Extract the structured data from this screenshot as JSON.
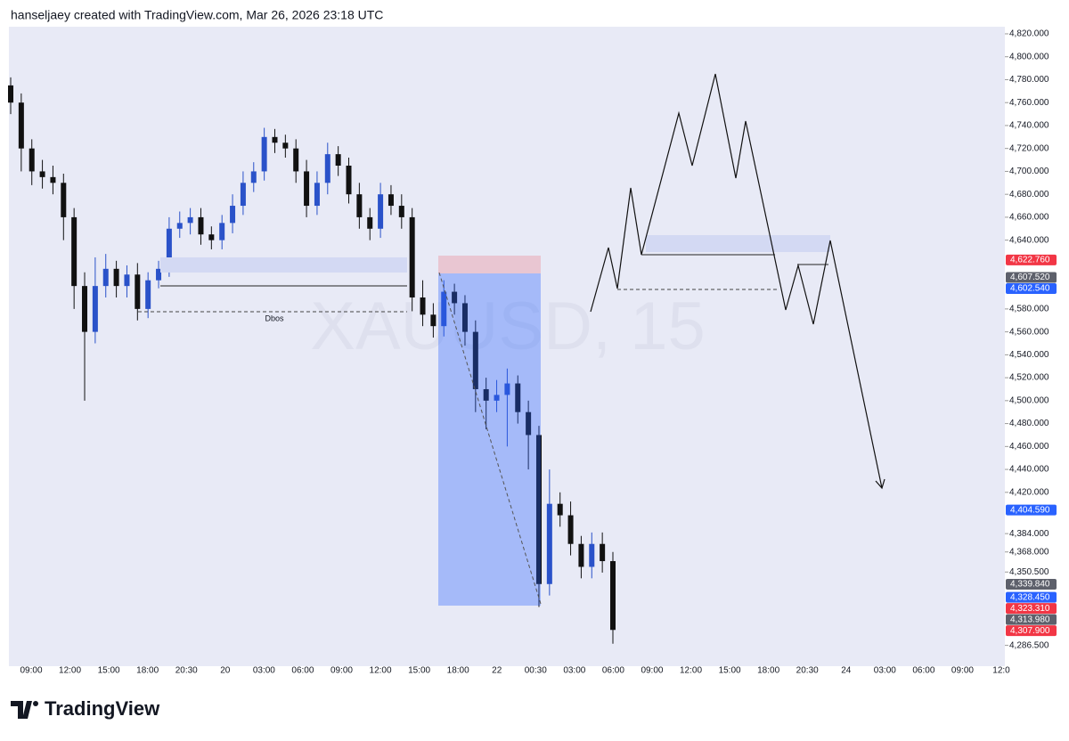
{
  "header": "hanseljaey created with TradingView.com, Mar 26, 2026 23:18 UTC",
  "footer": "TradingView",
  "chart_data": {
    "type": "candlestick",
    "watermark": "XAUUSD, 15",
    "annotation": "Dbos",
    "up_color": "#2a52c9",
    "down_color": "#111111",
    "open": [
      4775,
      4760,
      4720,
      4700,
      4695,
      4690,
      4660,
      4600,
      4560,
      4600,
      4615,
      4600,
      4610,
      4580,
      4605,
      4615,
      4650,
      4655,
      4660,
      4645,
      4640,
      4655,
      4670,
      4690,
      4700,
      4730,
      4725,
      4720,
      4700,
      4670,
      4690,
      4715,
      4705,
      4680,
      4660,
      4650,
      4680,
      4670,
      4660,
      4590,
      4575,
      4565,
      4595,
      4585,
      4560,
      4510,
      4500,
      4505,
      4515,
      4490,
      4470,
      4340,
      4410,
      4400,
      4375,
      4355,
      4375,
      4360
    ],
    "high": [
      4782,
      4768,
      4728,
      4710,
      4705,
      4698,
      4668,
      4612,
      4625,
      4628,
      4622,
      4618,
      4620,
      4612,
      4622,
      4660,
      4665,
      4668,
      4668,
      4652,
      4662,
      4680,
      4700,
      4708,
      4738,
      4737,
      4732,
      4728,
      4710,
      4700,
      4725,
      4722,
      4712,
      4690,
      4668,
      4690,
      4688,
      4680,
      4668,
      4605,
      4585,
      4605,
      4602,
      4592,
      4570,
      4520,
      4518,
      4528,
      4522,
      4500,
      4478,
      4440,
      4420,
      4412,
      4382,
      4385,
      4385,
      4368
    ],
    "low": [
      4750,
      4700,
      4688,
      4685,
      4680,
      4640,
      4580,
      4500,
      4550,
      4590,
      4590,
      4590,
      4570,
      4572,
      4598,
      4608,
      4642,
      4645,
      4636,
      4632,
      4632,
      4646,
      4662,
      4682,
      4692,
      4716,
      4712,
      4690,
      4660,
      4662,
      4680,
      4696,
      4672,
      4650,
      4640,
      4642,
      4662,
      4650,
      4578,
      4565,
      4555,
      4556,
      4575,
      4548,
      4490,
      4475,
      4490,
      4460,
      4480,
      4440,
      4320,
      4330,
      4390,
      4365,
      4345,
      4345,
      4350,
      4288
    ],
    "close": [
      4760,
      4720,
      4700,
      4695,
      4690,
      4660,
      4600,
      4560,
      4600,
      4615,
      4600,
      4610,
      4580,
      4605,
      4615,
      4650,
      4655,
      4660,
      4645,
      4640,
      4655,
      4670,
      4690,
      4700,
      4730,
      4725,
      4720,
      4700,
      4670,
      4690,
      4715,
      4705,
      4680,
      4660,
      4650,
      4680,
      4670,
      4660,
      4590,
      4575,
      4565,
      4595,
      4585,
      4560,
      4510,
      4500,
      4505,
      4515,
      4490,
      4470,
      4340,
      4410,
      4400,
      4375,
      4355,
      4375,
      4360,
      4300
    ],
    "categories": [
      "09:00",
      "12:00",
      "15:00",
      "18:00",
      "20:30",
      "20",
      "03:00",
      "06:00",
      "09:00",
      "12:00",
      "15:00",
      "18:00",
      "22",
      "00:30",
      "03:00",
      "06:00",
      "09:00",
      "12:00",
      "15:00",
      "18:00",
      "20:30",
      "24",
      "03:00",
      "06:00",
      "09:00",
      "12:0"
    ],
    "ylim": [
      4280,
      4826.2
    ],
    "yticks": [
      {
        "value": 4820,
        "label": "4,820.000"
      },
      {
        "value": 4800,
        "label": "4,800.000"
      },
      {
        "value": 4780,
        "label": "4,780.000"
      },
      {
        "value": 4760,
        "label": "4,760.000"
      },
      {
        "value": 4740,
        "label": "4,740.000"
      },
      {
        "value": 4720,
        "label": "4,720.000"
      },
      {
        "value": 4700,
        "label": "4,700.000"
      },
      {
        "value": 4680,
        "label": "4,680.000"
      },
      {
        "value": 4660,
        "label": "4,660.000"
      },
      {
        "value": 4640,
        "label": "4,640.000"
      },
      {
        "value": 4580,
        "label": "4,580.000"
      },
      {
        "value": 4560,
        "label": "4,560.000"
      },
      {
        "value": 4540,
        "label": "4,540.000"
      },
      {
        "value": 4520,
        "label": "4,520.000"
      },
      {
        "value": 4500,
        "label": "4,500.000"
      },
      {
        "value": 4480,
        "label": "4,480.000"
      },
      {
        "value": 4460,
        "label": "4,460.000"
      },
      {
        "value": 4440,
        "label": "4,440.000"
      },
      {
        "value": 4420,
        "label": "4,420.000"
      },
      {
        "value": 4384,
        "label": "4,384.000"
      },
      {
        "value": 4368,
        "label": "4,368.000"
      },
      {
        "value": 4350.5,
        "label": "4,350.500"
      },
      {
        "value": 4286.5,
        "label": "4,286.500"
      }
    ],
    "price_labels": [
      {
        "value": 4622.76,
        "label": "4,622.760",
        "color": "#f23645"
      },
      {
        "value": 4607.52,
        "label": "4,607.520",
        "color": "#5d606b"
      },
      {
        "value": 4602.54,
        "label": "4,602.540",
        "color": "#2962ff"
      },
      {
        "value": 4404.59,
        "label": "4,404.590",
        "color": "#2962ff"
      },
      {
        "value": 4339.84,
        "label": "4,339.840",
        "color": "#5d606b"
      },
      {
        "value": 4328.45,
        "label": "4,328.450",
        "color": "#2962ff"
      },
      {
        "value": 4323.31,
        "label": "4,323.310",
        "color": "#f23645"
      },
      {
        "value": 4313.98,
        "label": "4,313.980",
        "color": "#5d606b"
      },
      {
        "value": 4307.9,
        "label": "4,307.900",
        "color": "#f23645"
      }
    ]
  }
}
